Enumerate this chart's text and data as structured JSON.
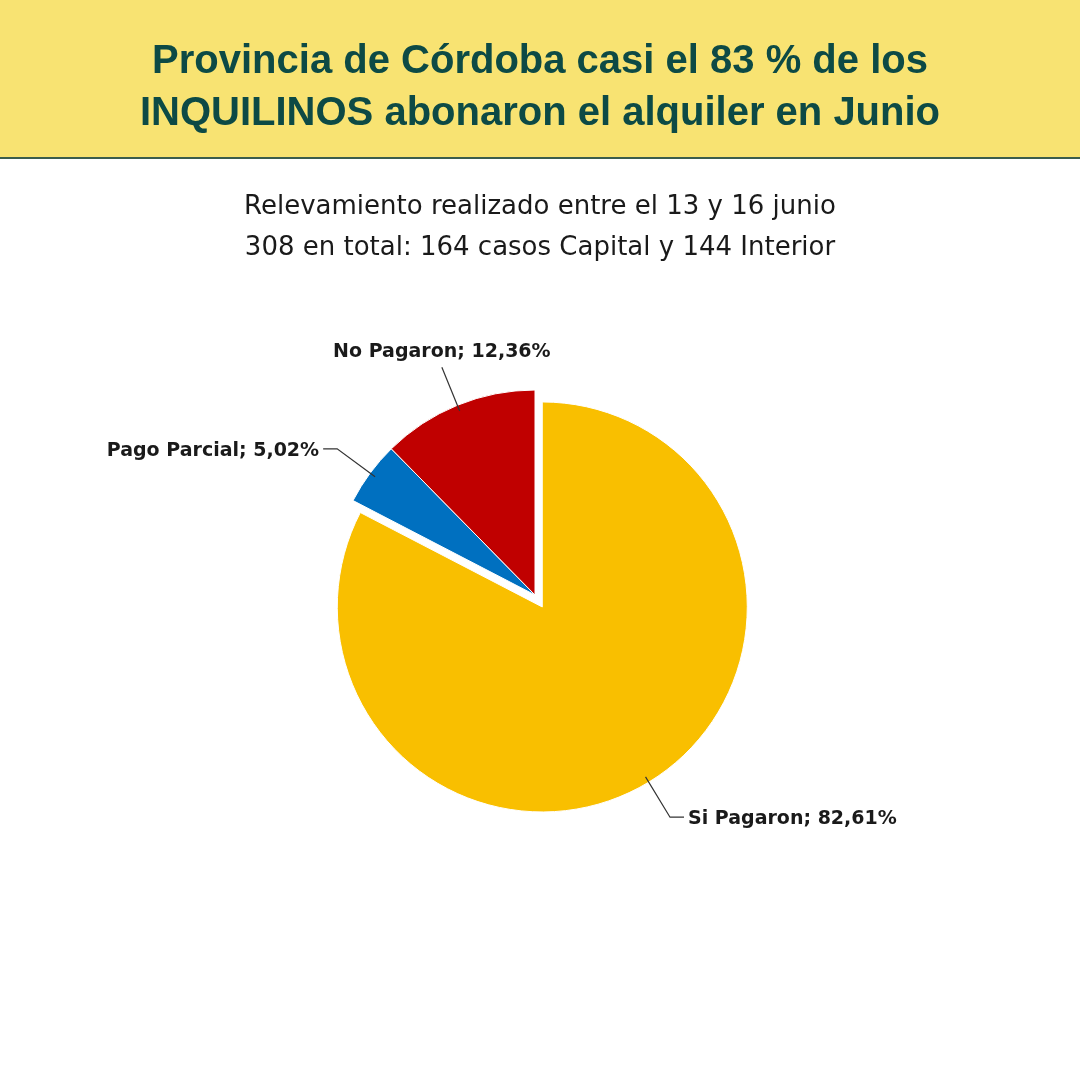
{
  "chart_data": {
    "type": "pie",
    "title": "Provincia de Córdoba casi el 83 % de los INQUILINOS abonaron el alquiler en Junio",
    "subtitle": "Relevamiento realizado entre el 13 y 16 junio",
    "annotations": [
      "308 en total: 164 casos Capital y 144 Interior"
    ],
    "categories": [
      "Si Pagaron",
      "Pago Parcial",
      "No Pagaron"
    ],
    "values": [
      82.61,
      5.02,
      12.36
    ],
    "colors": [
      "#f9bf00",
      "#0070c0",
      "#c00000"
    ],
    "value_labels": [
      "82,61%",
      "5,02%",
      "12,36%"
    ]
  }
}
